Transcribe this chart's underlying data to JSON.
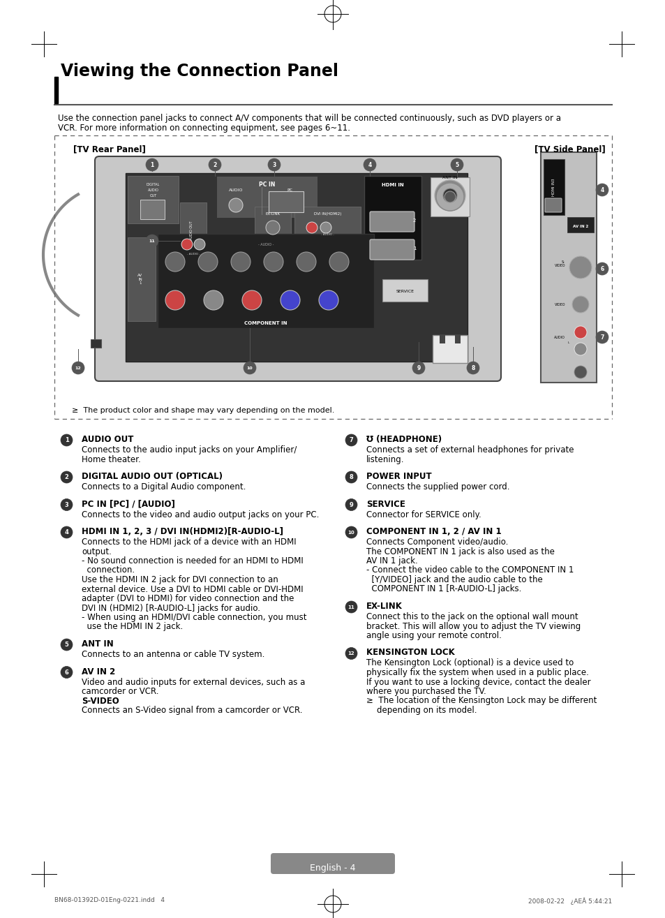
{
  "page_bg": "#ffffff",
  "title": "Viewing the Connection Panel",
  "subtitle_line1": "Use the connection panel jacks to connect A/V components that will be connected continuously, such as DVD players or a",
  "subtitle_line2": "VCR. For more information on connecting equipment, see pages 6~11.",
  "panel_label_left": "[TV Rear Panel]",
  "panel_label_right": "[TV Side Panel]",
  "note": "The product color and shape may vary depending on the model.",
  "items_left": [
    {
      "num": "1",
      "heading": "AUDIO OUT",
      "lines": [
        "Connects to the audio input jacks on your Amplifier/",
        "Home theater."
      ],
      "bold_lines": []
    },
    {
      "num": "2",
      "heading": "DIGITAL AUDIO OUT (OPTICAL)",
      "lines": [
        "Connects to a Digital Audio component."
      ],
      "bold_lines": []
    },
    {
      "num": "3",
      "heading": "PC IN [PC] / [AUDIO]",
      "lines": [
        "Connects to the video and audio output jacks on your PC."
      ],
      "bold_lines": []
    },
    {
      "num": "4",
      "heading": "HDMI IN 1, 2, 3 / DVI IN(HDMI2)[R-AUDIO-L]",
      "lines": [
        "Connects to the HDMI jack of a device with an HDMI",
        "output.",
        "- No sound connection is needed for an HDMI to HDMI",
        "  connection.",
        "Use the HDMI IN 2 jack for DVI connection to an",
        "external device. Use a DVI to HDMI cable or DVI-HDMI",
        "adapter (DVI to HDMI) for video connection and the",
        "DVI IN (HDMI2) [R-AUDIO-L] jacks for audio.",
        "- When using an HDMI/DVI cable connection, you must",
        "  use the HDMI IN 2 jack."
      ],
      "bold_lines": []
    },
    {
      "num": "5",
      "heading": "ANT IN",
      "lines": [
        "Connects to an antenna or cable TV system."
      ],
      "bold_lines": []
    },
    {
      "num": "6",
      "heading": "AV IN 2",
      "lines": [
        "Video and audio inputs for external devices, such as a",
        "camcorder or VCR.",
        "S-VIDEO",
        "Connects an S-Video signal from a camcorder or VCR."
      ],
      "bold_lines": [
        "S-VIDEO"
      ]
    }
  ],
  "items_right": [
    {
      "num": "7",
      "heading": "(HEADPHONE)",
      "headphone_icon": true,
      "lines": [
        "Connects a set of external headphones for private",
        "listening."
      ],
      "bold_lines": []
    },
    {
      "num": "8",
      "heading": "POWER INPUT",
      "lines": [
        "Connects the supplied power cord."
      ],
      "bold_lines": []
    },
    {
      "num": "9",
      "heading": "SERVICE",
      "lines": [
        "Connector for SERVICE only."
      ],
      "bold_lines": []
    },
    {
      "num": "10",
      "heading": "COMPONENT IN 1, 2 / AV IN 1",
      "lines": [
        "Connects Component video/audio.",
        "The COMPONENT IN 1 jack is also used as the",
        "AV IN 1 jack.",
        "- Connect the video cable to the COMPONENT IN 1",
        "  [Y/VIDEO] jack and the audio cable to the",
        "  COMPONENT IN 1 [R-AUDIO-L] jacks."
      ],
      "bold_lines": []
    },
    {
      "num": "11",
      "heading": "EX-LINK",
      "lines": [
        "Connect this to the jack on the optional wall mount",
        "bracket. This will allow you to adjust the TV viewing",
        "angle using your remote control."
      ],
      "bold_lines": []
    },
    {
      "num": "12",
      "heading": "KENSINGTON LOCK",
      "lines": [
        "The Kensington Lock (optional) is a device used to",
        "physically fix the system when used in a public place.",
        "If you want to use a locking device, contact the dealer",
        "where you purchased the TV.",
        "≥  The location of the Kensington Lock may be different",
        "    depending on its model."
      ],
      "bold_lines": []
    }
  ],
  "footer_text": "English - 4",
  "bottom_left": "BN68-01392D-01Eng-0221.indd   4",
  "bottom_right": "2008-02-22   ¿AEÂ 5:44:21"
}
